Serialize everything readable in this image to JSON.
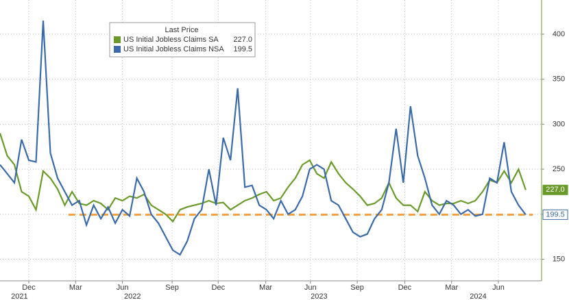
{
  "chart_data": {
    "type": "line",
    "legend_title": "Last Price",
    "series": [
      {
        "name": "US Initial Jobless Claims SA",
        "color": "#6a9a2a",
        "last_label": "227.0",
        "values": [
          290,
          265,
          255,
          225,
          220,
          205,
          248,
          240,
          228,
          210,
          225,
          212,
          210,
          215,
          212,
          205,
          218,
          215,
          220,
          218,
          222,
          210,
          205,
          200,
          192,
          205,
          208,
          210,
          212,
          215,
          212,
          213,
          205,
          210,
          215,
          218,
          222,
          225,
          215,
          218,
          230,
          240,
          255,
          260,
          245,
          240,
          258,
          245,
          235,
          228,
          220,
          210,
          212,
          218,
          235,
          218,
          210,
          210,
          203,
          225,
          215,
          210,
          212,
          212,
          215,
          212,
          215,
          225,
          238,
          235,
          248,
          235,
          250,
          227
        ]
      },
      {
        "name": "US Initial Jobless Claims NSA",
        "color": "#3a6aa8",
        "last_label": "199.5",
        "values": [
          255,
          245,
          235,
          283,
          260,
          258,
          415,
          268,
          240,
          225,
          210,
          215,
          188,
          210,
          195,
          208,
          190,
          205,
          198,
          240,
          225,
          200,
          190,
          175,
          160,
          155,
          170,
          195,
          205,
          250,
          210,
          285,
          260,
          340,
          230,
          232,
          210,
          205,
          195,
          215,
          200,
          205,
          220,
          250,
          255,
          250,
          215,
          210,
          195,
          180,
          175,
          178,
          195,
          205,
          235,
          295,
          235,
          320,
          265,
          240,
          210,
          200,
          215,
          210,
          200,
          205,
          198,
          200,
          240,
          235,
          280,
          225,
          210,
          199.5
        ]
      }
    ],
    "reference_line": {
      "value": 199.5,
      "color": "#f0a040",
      "from": 9.5,
      "to": 74
    },
    "xlim": [
      0,
      75.2
    ],
    "xticks": [
      {
        "value": 4,
        "label": "Dec"
      },
      {
        "value": 10.5,
        "label": "Mar"
      },
      {
        "value": 17,
        "label": "Jun"
      },
      {
        "value": 23.9,
        "label": "Sep"
      },
      {
        "value": 30.3,
        "label": "Dec"
      },
      {
        "value": 36.9,
        "label": "Mar"
      },
      {
        "value": 43.1,
        "label": "Jun"
      },
      {
        "value": 49.6,
        "label": "Sep"
      },
      {
        "value": 56.2,
        "label": "Dec"
      },
      {
        "value": 62.7,
        "label": "Mar"
      },
      {
        "value": 69.2,
        "label": "Jun"
      }
    ],
    "year_labels": [
      {
        "value": 2.7,
        "label": "2021"
      },
      {
        "value": 18.4,
        "label": "2022"
      },
      {
        "value": 44.3,
        "label": "2023"
      },
      {
        "value": 66.4,
        "label": "2024"
      }
    ],
    "ylim": [
      126,
      438
    ],
    "yticks": [
      150,
      200,
      250,
      300,
      350,
      400
    ],
    "grid": true
  }
}
